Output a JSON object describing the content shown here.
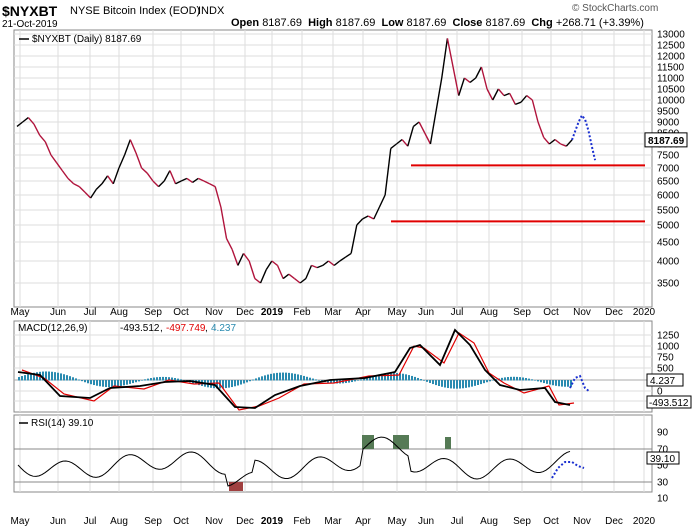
{
  "header": {
    "symbol": "$NYXBT",
    "name": "NYSE Bitcoin Index (EOD)",
    "exchange": "INDX",
    "date": "21-Oct-2019",
    "ohlc": {
      "open_label": "Open",
      "open": "8187.69",
      "high_label": "High",
      "high": "8187.69",
      "low_label": "Low",
      "low": "8187.69",
      "close_label": "Close",
      "close": "8187.69",
      "chg_label": "Chg",
      "chg": "+268.71 (+3.39%)"
    },
    "watermark": "© StockCharts.com"
  },
  "colors": {
    "price_up": "#000000",
    "price_down": "#b0143c",
    "support": "#e00000",
    "projection": "#1a2fd0",
    "macd_line": "#000000",
    "signal_line": "#e00000",
    "histogram": "#2a8bb0",
    "rsi_over": "#557a55",
    "rsi_under": "#a04040",
    "grid": "#dddddd"
  },
  "chart_data": [
    {
      "type": "line",
      "panel": "price",
      "legend": "$NYXBT (Daily) 8187.69",
      "current_value": "8187.69",
      "y_ticks": [
        3500,
        4000,
        4500,
        5000,
        5500,
        6000,
        6500,
        7000,
        7500,
        8000,
        8500,
        9000,
        9500,
        10000,
        10500,
        11000,
        11500,
        12000,
        12500,
        13000
      ],
      "x_labels": [
        "May",
        "Jun",
        "Jul",
        "Aug",
        "Sep",
        "Oct",
        "Nov",
        "Dec",
        "2019",
        "Feb",
        "Mar",
        "Apr",
        "May",
        "Jun",
        "Jul",
        "Aug",
        "Sep",
        "Oct",
        "Nov",
        "Dec",
        "2020"
      ],
      "x_bold_label": "2019",
      "series": [
        {
          "values": [
            8800,
            9000,
            9200,
            8900,
            8400,
            8100,
            7500,
            7200,
            6900,
            6600,
            6400,
            6300,
            6100,
            5900,
            6200,
            6400,
            6700,
            6400,
            7000,
            7500,
            8200,
            7600,
            7000,
            6800,
            6500,
            6300,
            6500,
            6900,
            6400,
            6500,
            6600,
            6450,
            6600,
            6500,
            6400,
            6300,
            5600,
            4600,
            4300,
            3900,
            4200,
            4000,
            3600,
            3500,
            3800,
            4000,
            3900,
            3600,
            3700,
            3600,
            3500,
            3600,
            3900,
            3850,
            3900,
            4000,
            3900,
            4000,
            4100,
            4200,
            5000,
            5200,
            5300,
            5200,
            5600,
            6000,
            7800,
            8000,
            8200,
            7900,
            8800,
            9000,
            8500,
            8000,
            9500,
            11000,
            12800,
            11500,
            10200,
            11000,
            10800,
            11000,
            11500,
            10500,
            10000,
            10500,
            10200,
            10300,
            9800,
            9900,
            10200,
            10000,
            9000,
            8300,
            8000,
            8200,
            8000,
            7900,
            8187.69
          ]
        },
        {
          "name": "projection",
          "values": [
            8187.69,
            8600,
            9000,
            9300,
            9100,
            8600,
            7900,
            7300
          ]
        }
      ],
      "support_levels": [
        7100,
        5120
      ]
    },
    {
      "type": "line",
      "panel": "macd",
      "legend_prefix": "MACD(12,26,9)",
      "macd_value": "-493.512",
      "signal_value": "-497.749",
      "hist_value": "4.237",
      "y_ticks": [
        "1250",
        "1000",
        "750",
        "500",
        "250",
        "0",
        "-250"
      ],
      "value_tags": [
        "4.237",
        "-493.512"
      ]
    },
    {
      "type": "line",
      "panel": "rsi",
      "legend": "RSI(14) 39.10",
      "y_ticks": [
        "90",
        "70",
        "50",
        "30",
        "10"
      ],
      "value_tag": "39.10",
      "levels": [
        70,
        30
      ]
    }
  ]
}
